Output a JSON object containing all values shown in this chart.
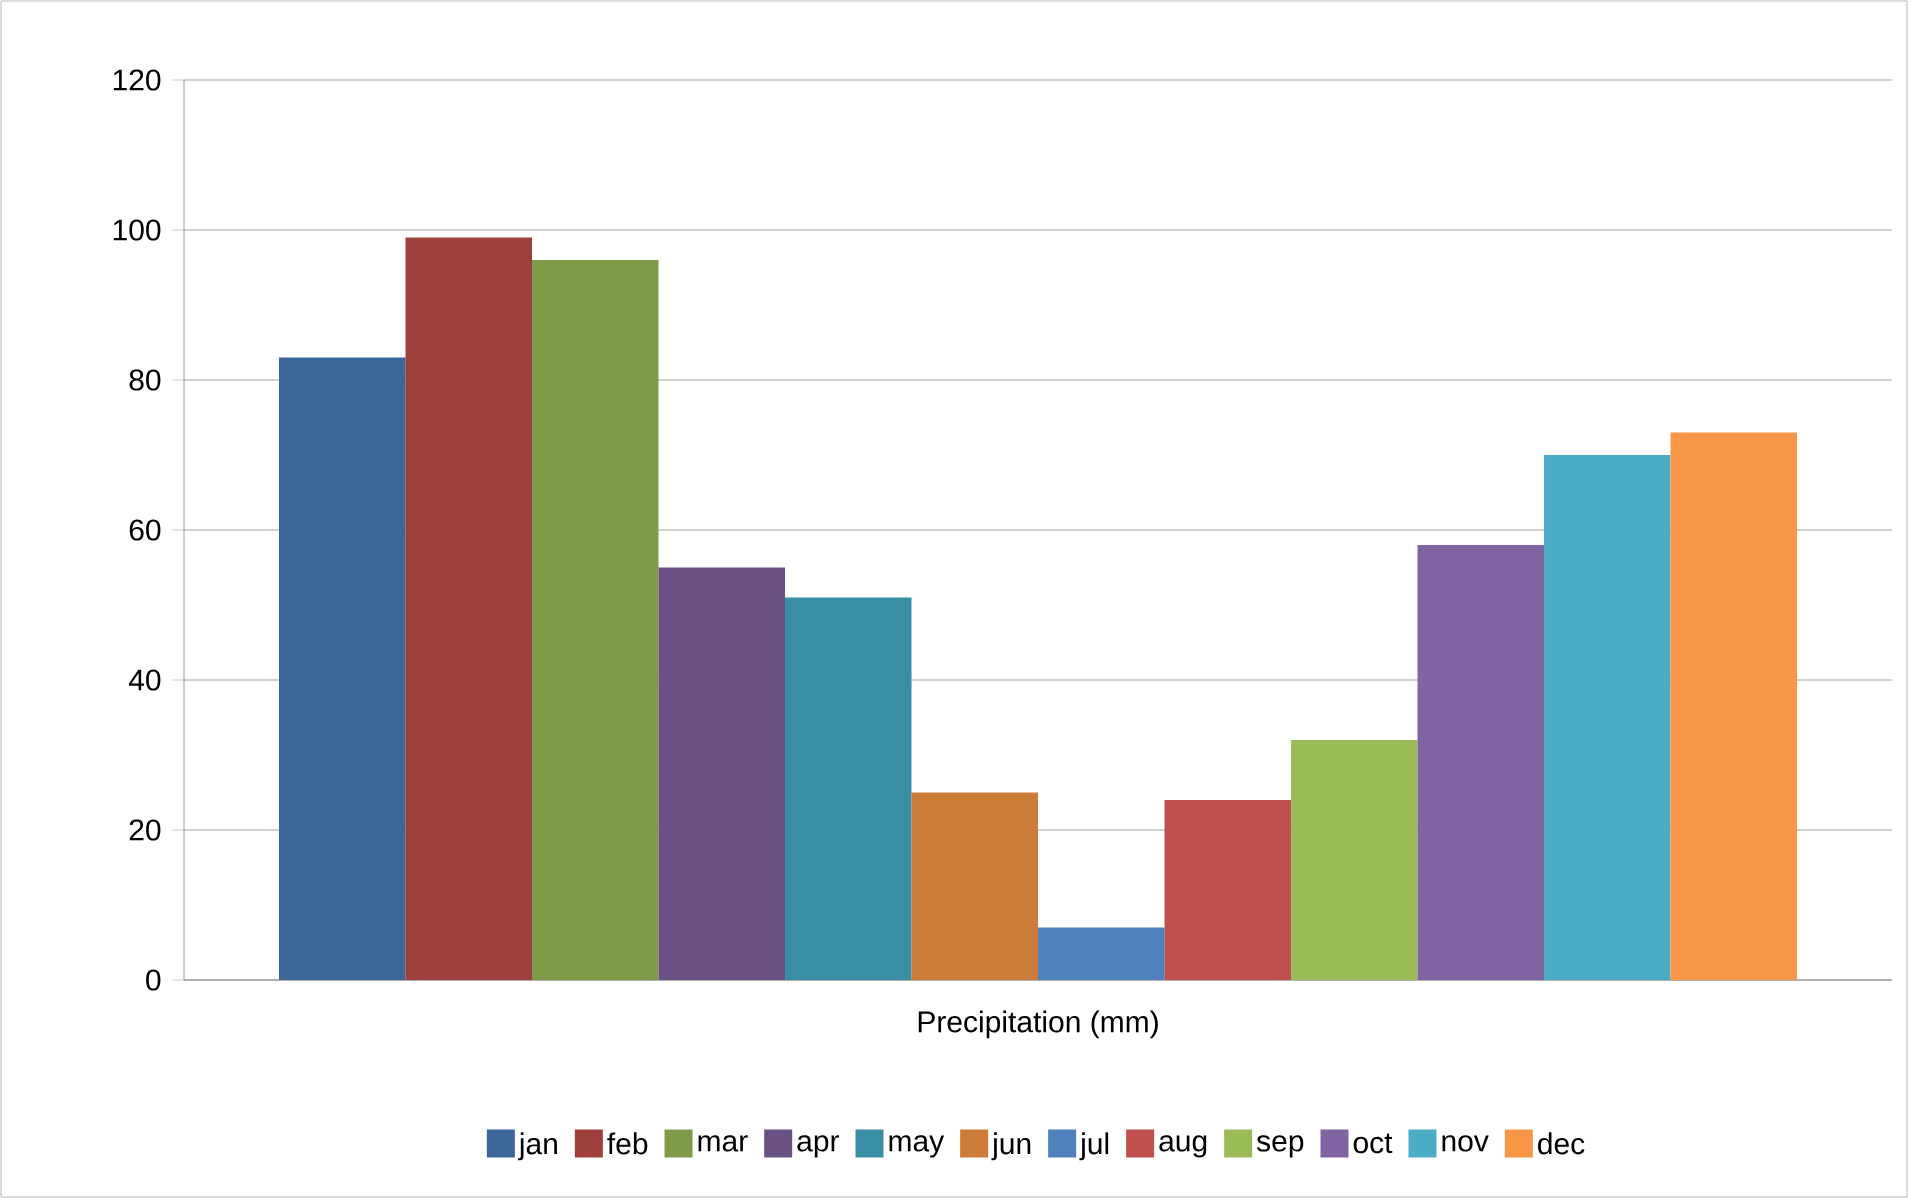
{
  "chart_data": {
    "type": "bar",
    "categories": [
      "Precipitation (mm)"
    ],
    "series": [
      {
        "name": "jan",
        "color": "#3d6699",
        "values": [
          83
        ]
      },
      {
        "name": "feb",
        "color": "#9e3f3c",
        "values": [
          99
        ]
      },
      {
        "name": "mar",
        "color": "#7f9b48",
        "values": [
          96
        ]
      },
      {
        "name": "apr",
        "color": "#695184",
        "values": [
          55
        ]
      },
      {
        "name": "may",
        "color": "#3a8ea4",
        "values": [
          51
        ]
      },
      {
        "name": "jun",
        "color": "#cc7b38",
        "values": [
          25
        ]
      },
      {
        "name": "jul",
        "color": "#4f81bd",
        "values": [
          7
        ]
      },
      {
        "name": "aug",
        "color": "#c0504d",
        "values": [
          24
        ]
      },
      {
        "name": "sep",
        "color": "#9bbb59",
        "values": [
          32
        ]
      },
      {
        "name": "oct",
        "color": "#8064a2",
        "values": [
          58
        ]
      },
      {
        "name": "nov",
        "color": "#4bacc6",
        "values": [
          70
        ]
      },
      {
        "name": "dec",
        "color": "#f79646",
        "values": [
          73
        ]
      }
    ],
    "ylim": [
      0,
      120
    ],
    "yticks": [
      0,
      20,
      40,
      60,
      80,
      100,
      120
    ],
    "grid": "y",
    "legend": "bottom"
  }
}
